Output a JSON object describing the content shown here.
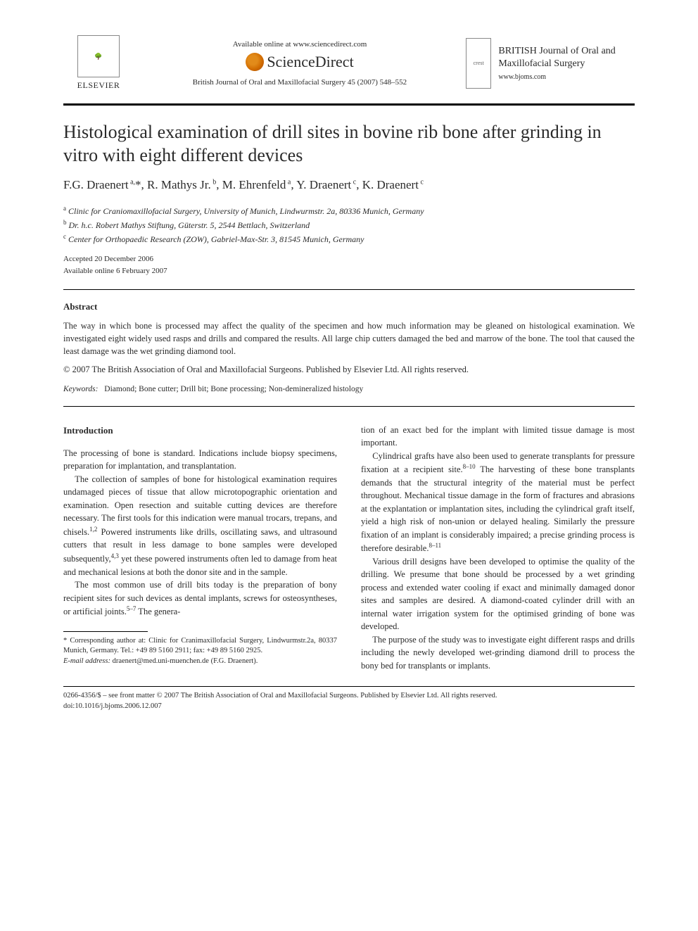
{
  "header": {
    "elsevier_label": "ELSEVIER",
    "available_text": "Available online at www.sciencedirect.com",
    "sd_text": "ScienceDirect",
    "journal_cite": "British Journal of Oral and Maxillofacial Surgery 45 (2007) 548–552",
    "journal_name": "BRITISH Journal of Oral and Maxillofacial Surgery",
    "journal_url": "www.bjoms.com"
  },
  "title": "Histological examination of drill sites in bovine rib bone after grinding in vitro with eight different devices",
  "authors_html": "F.G. Draenert<sup> a,</sup>*, R. Mathys Jr.<sup> b</sup>, M. Ehrenfeld<sup> a</sup>, Y. Draenert<sup> c</sup>, K. Draenert<sup> c</sup>",
  "affiliations": [
    {
      "sup": "a",
      "text": "Clinic for Craniomaxillofacial Surgery, University of Munich, Lindwurmstr. 2a, 80336 Munich, Germany"
    },
    {
      "sup": "b",
      "text": "Dr. h.c. Robert Mathys Stiftung, Güterstr. 5, 2544 Bettlach, Switzerland"
    },
    {
      "sup": "c",
      "text": "Center for Orthopaedic Research (ZOW), Gabriel-Max-Str. 3, 81545 Munich, Germany"
    }
  ],
  "dates": {
    "accepted": "Accepted 20 December 2006",
    "online": "Available online 6 February 2007"
  },
  "abstract": {
    "heading": "Abstract",
    "body": "The way in which bone is processed may affect the quality of the specimen and how much information may be gleaned on histological examination. We investigated eight widely used rasps and drills and compared the results. All large chip cutters damaged the bed and marrow of the bone. The tool that caused the least damage was the wet grinding diamond tool.",
    "copyright": "© 2007 The British Association of Oral and Maxillofacial Surgeons. Published by Elsevier Ltd. All rights reserved."
  },
  "keywords": {
    "label": "Keywords:",
    "text": "Diamond; Bone cutter; Drill bit; Bone processing; Non-demineralized histology"
  },
  "intro": {
    "heading": "Introduction",
    "col1": {
      "p1": "The processing of bone is standard. Indications include biopsy specimens, preparation for implantation, and transplantation.",
      "p2_a": "The collection of samples of bone for histological examination requires undamaged pieces of tissue that allow microtopographic orientation and examination. Open resection and suitable cutting devices are therefore necessary. The first tools for this indication were manual trocars, trepans, and chisels.",
      "p2_ref1": "1,2",
      "p2_b": " Powered instruments like drills, oscillating saws, and ultrasound cutters that result in less damage to bone samples were developed subsequently,",
      "p2_ref2": "4,3",
      "p2_c": " yet these powered instruments often led to damage from heat and mechanical lesions at both the donor site and in the sample.",
      "p3_a": "The most common use of drill bits today is the preparation of bony recipient sites for such devices as dental implants, screws for osteosyntheses, or artificial joints.",
      "p3_ref": "5–7",
      "p3_b": " The genera-"
    },
    "col2": {
      "p1": "tion of an exact bed for the implant with limited tissue damage is most important.",
      "p2_a": "Cylindrical grafts have also been used to generate transplants for pressure fixation at a recipient site.",
      "p2_ref1": "8–10",
      "p2_b": " The harvesting of these bone transplants demands that the structural integrity of the material must be perfect throughout. Mechanical tissue damage in the form of fractures and abrasions at the explantation or implantation sites, including the cylindrical graft itself, yield a high risk of non-union or delayed healing. Similarly the pressure fixation of an implant is considerably impaired; a precise grinding process is therefore desirable.",
      "p2_ref2": "8–11",
      "p3": "Various drill designs have been developed to optimise the quality of the drilling. We presume that bone should be processed by a wet grinding process and extended water cooling if exact and minimally damaged donor sites and samples are desired. A diamond-coated cylinder drill with an internal water irrigation system for the optimised grinding of bone was developed.",
      "p4": "The purpose of the study was to investigate eight different rasps and drills including the newly developed wet-grinding diamond drill to process the bony bed for transplants or implants."
    }
  },
  "footnote": {
    "corr_a": "* Corresponding author at: Clinic for Cranimaxillofacial Surgery, Lindwurmstr.2a, 80337 Munich, Germany. Tel.: +49 89 5160 2911; fax: +49 89 5160 2925.",
    "email_label": "E-mail address:",
    "email": "draenert@med.uni-muenchen.de",
    "email_name": "(F.G. Draenert)."
  },
  "footer": {
    "line1": "0266-4356/$ – see front matter © 2007 The British Association of Oral and Maxillofacial Surgeons. Published by Elsevier Ltd. All rights reserved.",
    "line2": "doi:10.1016/j.bjoms.2006.12.007"
  },
  "colors": {
    "text": "#2a2a2a",
    "background": "#ffffff",
    "rule": "#000000",
    "sd_orange": "#e28b1a"
  },
  "typography": {
    "title_fontsize": 26,
    "authors_fontsize": 17,
    "body_fontsize": 12.5,
    "affil_fontsize": 12,
    "footnote_fontsize": 10.5
  }
}
